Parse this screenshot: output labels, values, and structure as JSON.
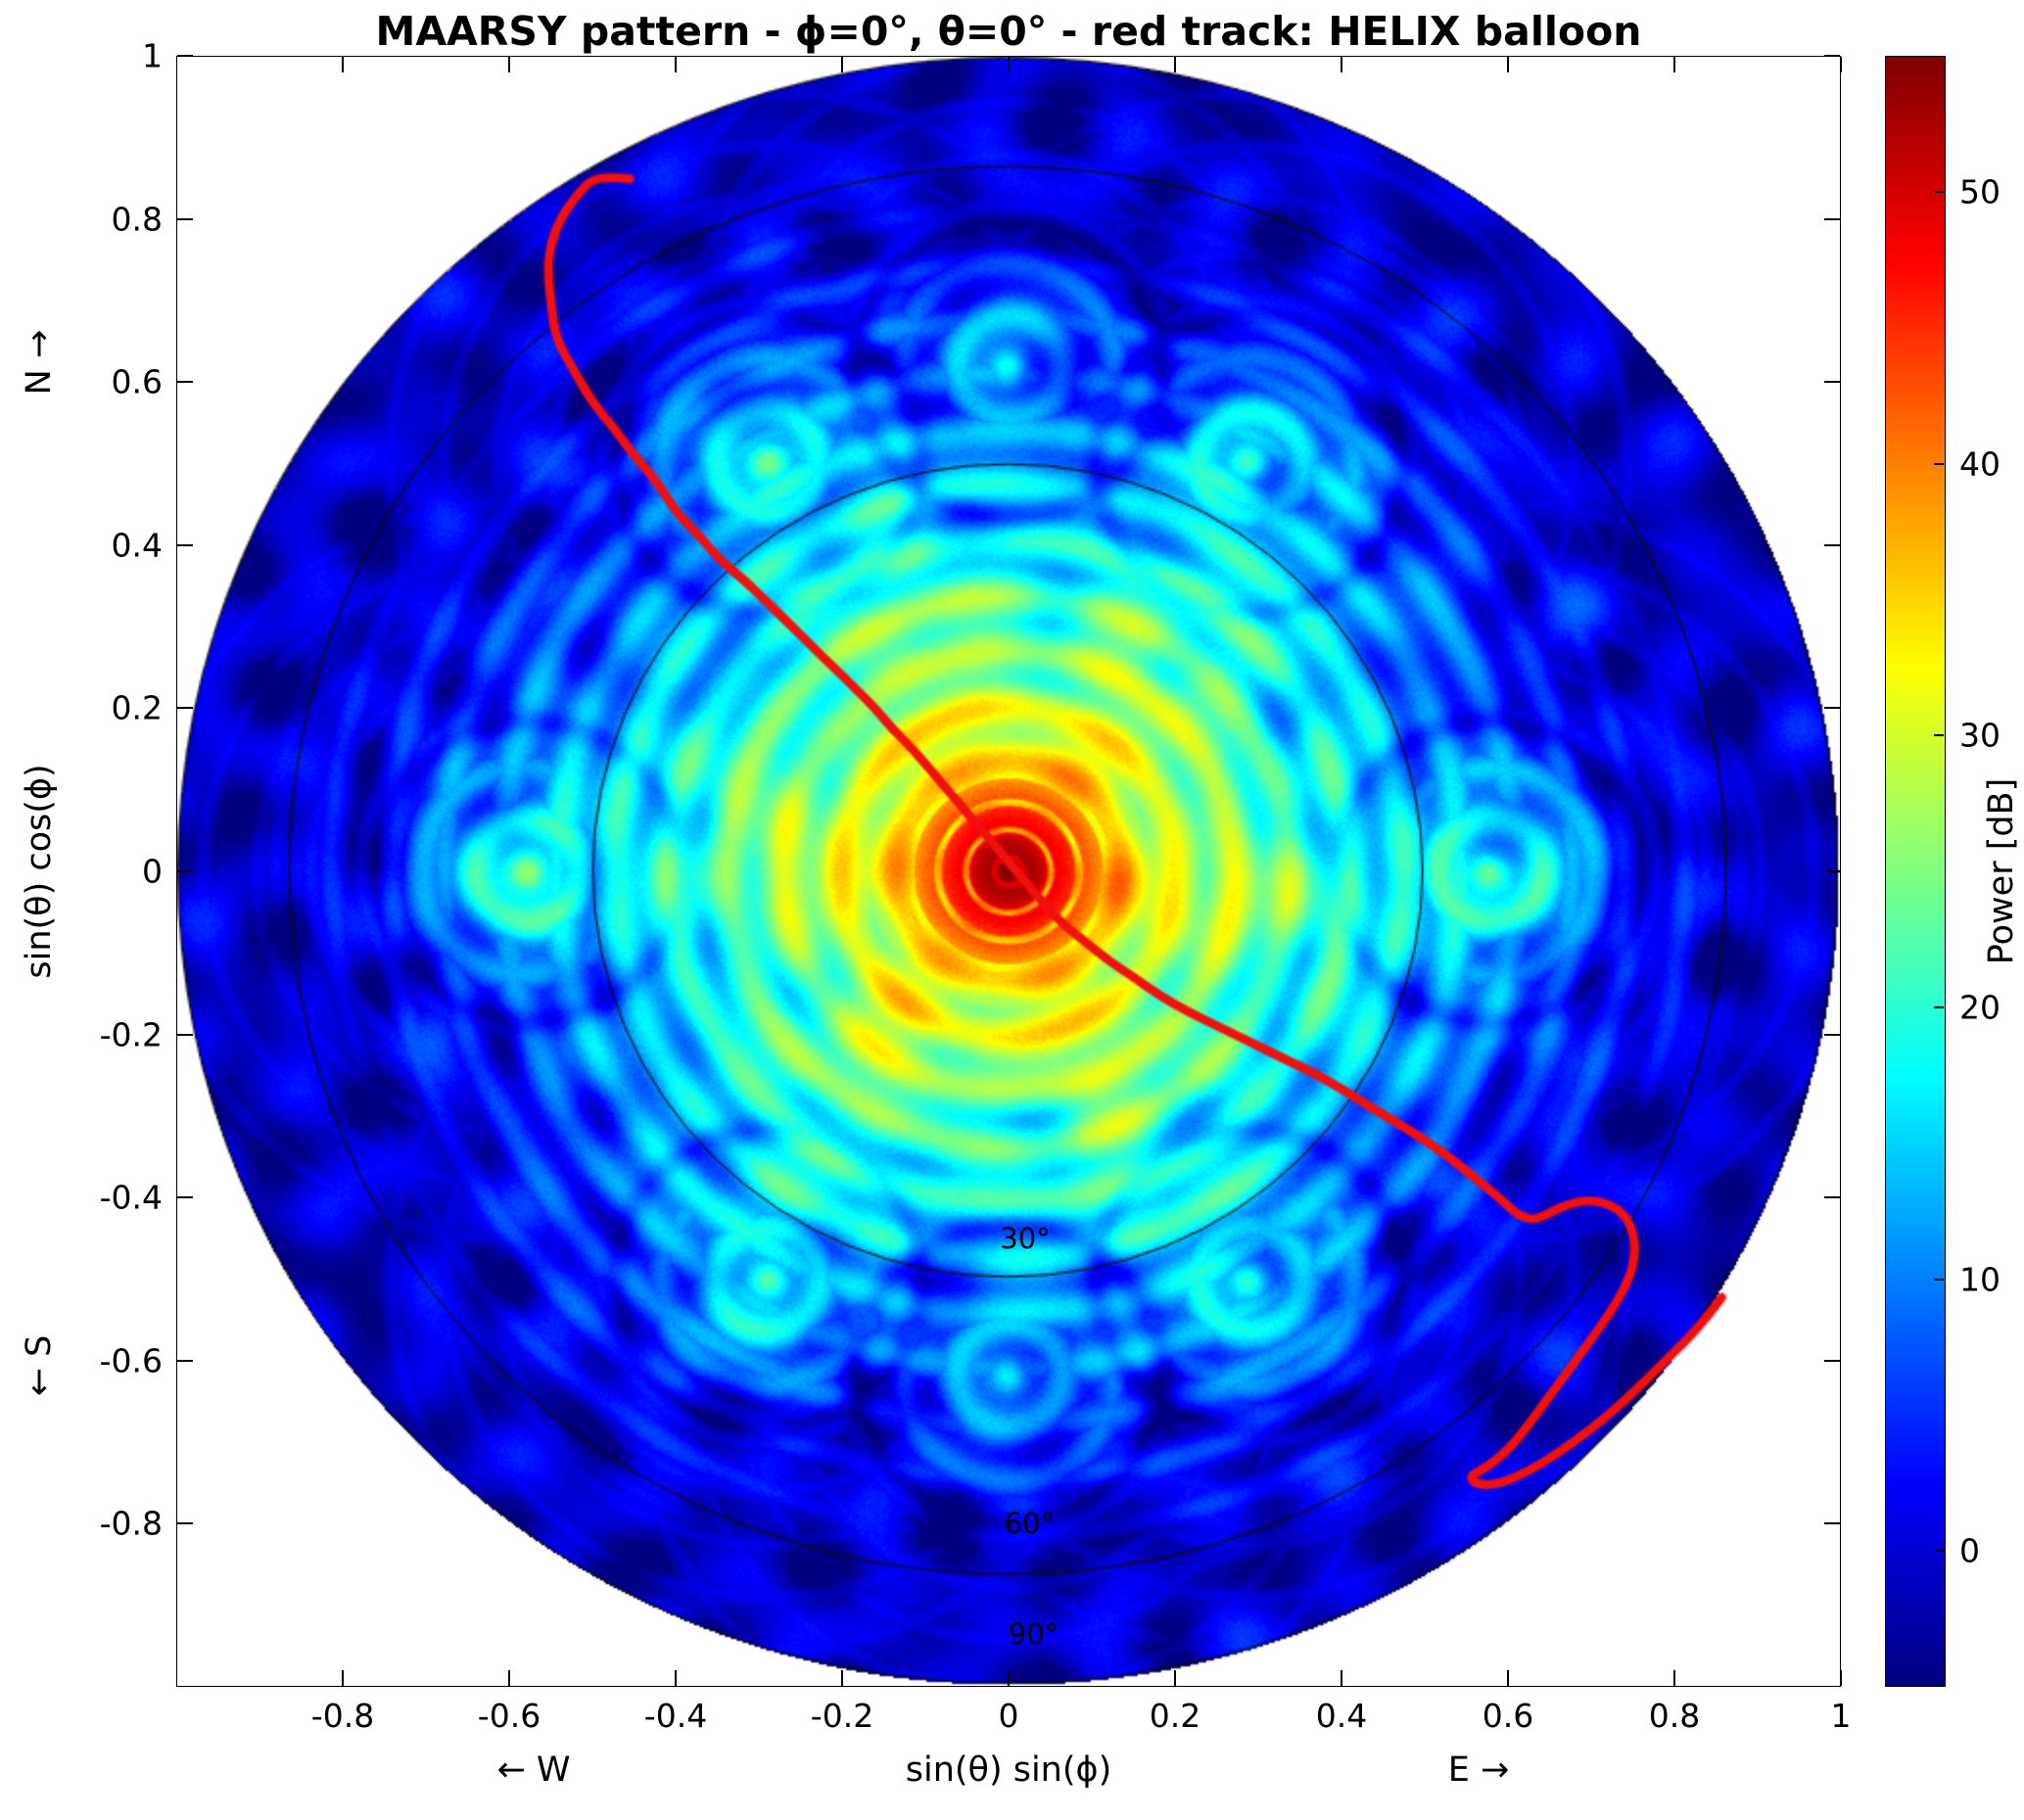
{
  "title": "MAARSY pattern - ϕ=0°, θ=0° - red track: HELIX balloon",
  "axes": {
    "xlabel": "sin(θ) sin(ϕ)",
    "ylabel": "sin(θ) cos(ϕ)",
    "x_dir_left": "← W",
    "x_dir_right": "E →",
    "y_dir_top": "N →",
    "y_dir_bottom": "← S",
    "xlim": [
      -1,
      1
    ],
    "ylim": [
      -1,
      1
    ],
    "xticks": [
      -0.8,
      -0.6,
      -0.4,
      -0.2,
      0,
      0.2,
      0.4,
      0.6,
      0.8,
      1
    ],
    "yticks": [
      1,
      0.8,
      0.6,
      0.4,
      0.2,
      0,
      -0.2,
      -0.4,
      -0.6,
      -0.8
    ]
  },
  "colorbar": {
    "label": "Power [dB]",
    "ticks": [
      0,
      10,
      20,
      30,
      40,
      50
    ],
    "vmin": -5,
    "vmax": 55,
    "colormap": "jet"
  },
  "chart_data": {
    "type": "heatmap",
    "title": "MAARSY pattern - ϕ=0°, θ=0° - red track: HELIX balloon",
    "xlabel": "sin(θ) sin(ϕ)",
    "ylabel": "sin(θ) cos(ϕ)",
    "value_label": "Power [dB]",
    "value_range": [
      -5,
      55
    ],
    "domain": "unit disc in direction cosines, white outside r=1",
    "pattern": {
      "peak_db": 55,
      "main_lobe": {
        "center": [
          0,
          0
        ],
        "core_falloff": [
          350,
          1.6,
          50
        ],
        "null_spacing": 0.034,
        "null_depth_db": 14
      },
      "sidelobe_rings": {
        "spacing": 0.068,
        "envelope_db_at_center": 42,
        "envelope_slope_db_per_unit": -50,
        "modulation_db": 4
      },
      "secondary_lobes": [
        {
          "angle_deg": 0,
          "r": 0.58,
          "amp_db": 24
        },
        {
          "angle_deg": 60,
          "r": 0.58,
          "amp_db": 20
        },
        {
          "angle_deg": 120,
          "r": 0.58,
          "amp_db": 21
        },
        {
          "angle_deg": 180,
          "r": 0.58,
          "amp_db": 24
        },
        {
          "angle_deg": 240,
          "r": 0.58,
          "amp_db": 21
        },
        {
          "angle_deg": 300,
          "r": 0.58,
          "amp_db": 20
        },
        {
          "angle_deg": 90,
          "r": 0.62,
          "amp_db": 16
        },
        {
          "angle_deg": 270,
          "r": 0.62,
          "amp_db": 16
        }
      ],
      "texture": {
        "angles_deg": [
          0,
          30,
          60,
          90,
          120,
          150
        ],
        "freqs": [
          7.3,
          6.1,
          8.4,
          5.6,
          7.8,
          6.6
        ],
        "phases": [
          0.5,
          2.1,
          4.2,
          1.3,
          3.3,
          5.1
        ]
      }
    },
    "elevation_circles": [
      {
        "radius": 0.5,
        "label": "30°",
        "label_pos": [
          0.02,
          -0.45
        ]
      },
      {
        "radius": 0.866,
        "label": "60°",
        "label_pos": [
          0.025,
          -0.8
        ]
      },
      {
        "radius": 1.0,
        "label": "90°",
        "label_pos": [
          0.03,
          -0.935
        ]
      }
    ],
    "track": {
      "name": "HELIX balloon",
      "color": "#f01010",
      "points": [
        [
          -0.455,
          0.85
        ],
        [
          -0.495,
          0.855
        ],
        [
          -0.52,
          0.83
        ],
        [
          -0.545,
          0.79
        ],
        [
          -0.555,
          0.745
        ],
        [
          -0.55,
          0.7
        ],
        [
          -0.545,
          0.655
        ],
        [
          -0.52,
          0.61
        ],
        [
          -0.5,
          0.575
        ],
        [
          -0.475,
          0.545
        ],
        [
          -0.45,
          0.51
        ],
        [
          -0.42,
          0.475
        ],
        [
          -0.4,
          0.44
        ],
        [
          -0.37,
          0.41
        ],
        [
          -0.345,
          0.38
        ],
        [
          -0.315,
          0.355
        ],
        [
          -0.285,
          0.325
        ],
        [
          -0.26,
          0.3
        ],
        [
          -0.235,
          0.275
        ],
        [
          -0.21,
          0.25
        ],
        [
          -0.185,
          0.225
        ],
        [
          -0.16,
          0.2
        ],
        [
          -0.14,
          0.175
        ],
        [
          -0.115,
          0.15
        ],
        [
          -0.09,
          0.12
        ],
        [
          -0.065,
          0.09
        ],
        [
          -0.04,
          0.06
        ],
        [
          -0.015,
          0.03
        ],
        [
          0.01,
          0.0
        ],
        [
          0.035,
          -0.03
        ],
        [
          0.06,
          -0.06
        ],
        [
          0.09,
          -0.085
        ],
        [
          0.12,
          -0.11
        ],
        [
          0.15,
          -0.13
        ],
        [
          0.185,
          -0.155
        ],
        [
          0.22,
          -0.175
        ],
        [
          0.26,
          -0.195
        ],
        [
          0.3,
          -0.215
        ],
        [
          0.34,
          -0.235
        ],
        [
          0.38,
          -0.255
        ],
        [
          0.42,
          -0.28
        ],
        [
          0.46,
          -0.305
        ],
        [
          0.5,
          -0.33
        ],
        [
          0.535,
          -0.355
        ],
        [
          0.565,
          -0.38
        ],
        [
          0.595,
          -0.405
        ],
        [
          0.615,
          -0.425
        ],
        [
          0.635,
          -0.43
        ],
        [
          0.655,
          -0.42
        ],
        [
          0.675,
          -0.41
        ],
        [
          0.7,
          -0.405
        ],
        [
          0.725,
          -0.41
        ],
        [
          0.745,
          -0.425
        ],
        [
          0.755,
          -0.45
        ],
        [
          0.755,
          -0.48
        ],
        [
          0.745,
          -0.51
        ],
        [
          0.725,
          -0.545
        ],
        [
          0.7,
          -0.58
        ],
        [
          0.675,
          -0.615
        ],
        [
          0.65,
          -0.65
        ],
        [
          0.625,
          -0.685
        ],
        [
          0.6,
          -0.715
        ],
        [
          0.575,
          -0.735
        ],
        [
          0.555,
          -0.745
        ],
        [
          0.565,
          -0.755
        ],
        [
          0.59,
          -0.755
        ],
        [
          0.625,
          -0.74
        ],
        [
          0.665,
          -0.715
        ],
        [
          0.705,
          -0.685
        ],
        [
          0.745,
          -0.65
        ],
        [
          0.785,
          -0.61
        ],
        [
          0.82,
          -0.575
        ],
        [
          0.845,
          -0.545
        ],
        [
          0.86,
          -0.525
        ]
      ]
    }
  }
}
